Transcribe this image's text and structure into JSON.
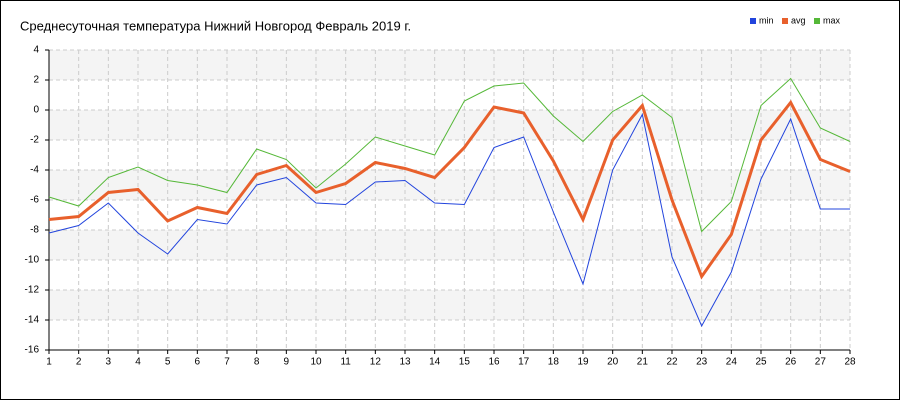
{
  "chart_data": {
    "type": "line",
    "title": "Среднесуточная температура Нижний Новгород  Февраль 2019 г.",
    "x": [
      1,
      2,
      3,
      4,
      5,
      6,
      7,
      8,
      9,
      10,
      11,
      12,
      13,
      14,
      15,
      16,
      17,
      18,
      19,
      20,
      21,
      22,
      23,
      24,
      25,
      26,
      27,
      28
    ],
    "xlim": [
      1,
      28
    ],
    "xticks": [
      1,
      2,
      3,
      4,
      5,
      6,
      7,
      8,
      9,
      10,
      11,
      12,
      13,
      14,
      15,
      16,
      17,
      18,
      19,
      20,
      21,
      22,
      23,
      24,
      25,
      26,
      27,
      28
    ],
    "ylim": [
      -16,
      4
    ],
    "yticks": [
      -16,
      -14,
      -12,
      -10,
      -8,
      -6,
      -4,
      -2,
      0,
      2,
      4
    ],
    "grid": true,
    "legend": "top-right",
    "series": [
      {
        "name": "min",
        "color": "#2244dd",
        "values": [
          -8.2,
          -7.7,
          -6.2,
          -8.2,
          -9.6,
          -7.3,
          -7.6,
          -5.0,
          -4.5,
          -6.2,
          -6.3,
          -4.8,
          -4.7,
          -6.2,
          -6.3,
          -2.5,
          -1.8,
          -6.8,
          -11.6,
          -4.0,
          -0.3,
          -9.8,
          -14.4,
          -10.8,
          -4.6,
          -0.6,
          -6.6,
          -6.6
        ]
      },
      {
        "name": "avg",
        "color": "#e8602c",
        "values": [
          -7.3,
          -7.1,
          -5.5,
          -5.3,
          -7.4,
          -6.5,
          -6.9,
          -4.3,
          -3.7,
          -5.5,
          -4.9,
          -3.5,
          -3.9,
          -4.5,
          -2.5,
          0.2,
          -0.2,
          -3.4,
          -7.3,
          -2.0,
          0.3,
          -6.0,
          -11.1,
          -8.3,
          -2.0,
          0.5,
          -3.3,
          -4.1
        ]
      },
      {
        "name": "max",
        "color": "#55b838",
        "values": [
          -5.8,
          -6.4,
          -4.5,
          -3.8,
          -4.7,
          -5.0,
          -5.5,
          -2.6,
          -3.3,
          -5.2,
          -3.6,
          -1.8,
          -2.4,
          -3.0,
          0.6,
          1.6,
          1.8,
          -0.4,
          -2.1,
          -0.1,
          1.0,
          -0.5,
          -8.1,
          -6.1,
          0.3,
          2.1,
          -1.2,
          -2.1
        ]
      }
    ]
  }
}
